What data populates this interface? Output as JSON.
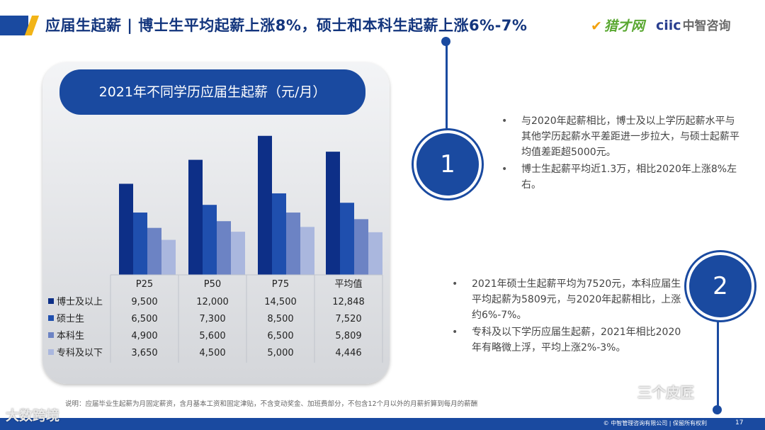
{
  "header": {
    "title": "应届生起薪 | 博士生平均起薪上涨8%，硕士和本科生起薪上涨6%-7%",
    "logo_left": "猎才网",
    "logo_right_latin": "ciic",
    "logo_right_cn": "中智咨询"
  },
  "panel": {
    "title": "2021年不同学历应届生起薪（元/月）"
  },
  "chart_data": {
    "type": "bar",
    "title": "2021年不同学历应届生起薪（元/月）",
    "categories": [
      "P25",
      "P50",
      "P75",
      "平均值"
    ],
    "series": [
      {
        "name": "博士及以上",
        "values": [
          9500,
          12000,
          14500,
          12848
        ],
        "color": "#0d2f87"
      },
      {
        "name": "硕士生",
        "values": [
          6500,
          7300,
          8500,
          7520
        ],
        "color": "#1f4fae"
      },
      {
        "name": "本科生",
        "values": [
          4900,
          5600,
          6500,
          5809
        ],
        "color": "#6c83c4"
      },
      {
        "name": "专科及以下",
        "values": [
          3650,
          4500,
          5000,
          4446
        ],
        "color": "#aab7de"
      }
    ],
    "table_values": [
      [
        "9,500",
        "12,000",
        "14,500",
        "12,848"
      ],
      [
        "6,500",
        "7,300",
        "8,500",
        "7,520"
      ],
      [
        "4,900",
        "5,600",
        "6,500",
        "5,809"
      ],
      [
        "3,650",
        "4,500",
        "5,000",
        "4,446"
      ]
    ],
    "ylim": [
      0,
      15000
    ],
    "grid": false,
    "legend": "data-table"
  },
  "insights": {
    "badge1": "1",
    "badge2": "2",
    "group1": [
      "与2020年起薪相比，博士及以上学历起薪水平与其他学历起薪水平差距进一步拉大，与硕士起薪平均值差距超5000元。",
      "博士生起薪平均近1.3万，相比2020年上涨8%左右。"
    ],
    "group2": [
      "2021年硕士生起薪平均为7520元，本科应届生平均起薪为5809元，与2020年起薪相比，上涨约6%-7%。",
      "专科及以下学历应届生起薪，2021年相比2020年有略微上浮，平均上涨2%-3%。"
    ]
  },
  "note": "说明：应届毕业生起薪为月固定薪资，含月基本工资和固定津贴，不含变动奖金、加班费部分，不包含12个月以外的月薪折算到每月的薪酬",
  "footer": {
    "copyright": "© 中智管理咨询有限公司 | 保留所有权利",
    "page": "17"
  },
  "watermarks": {
    "left": "大数跨境",
    "right": "三个皮匠"
  }
}
